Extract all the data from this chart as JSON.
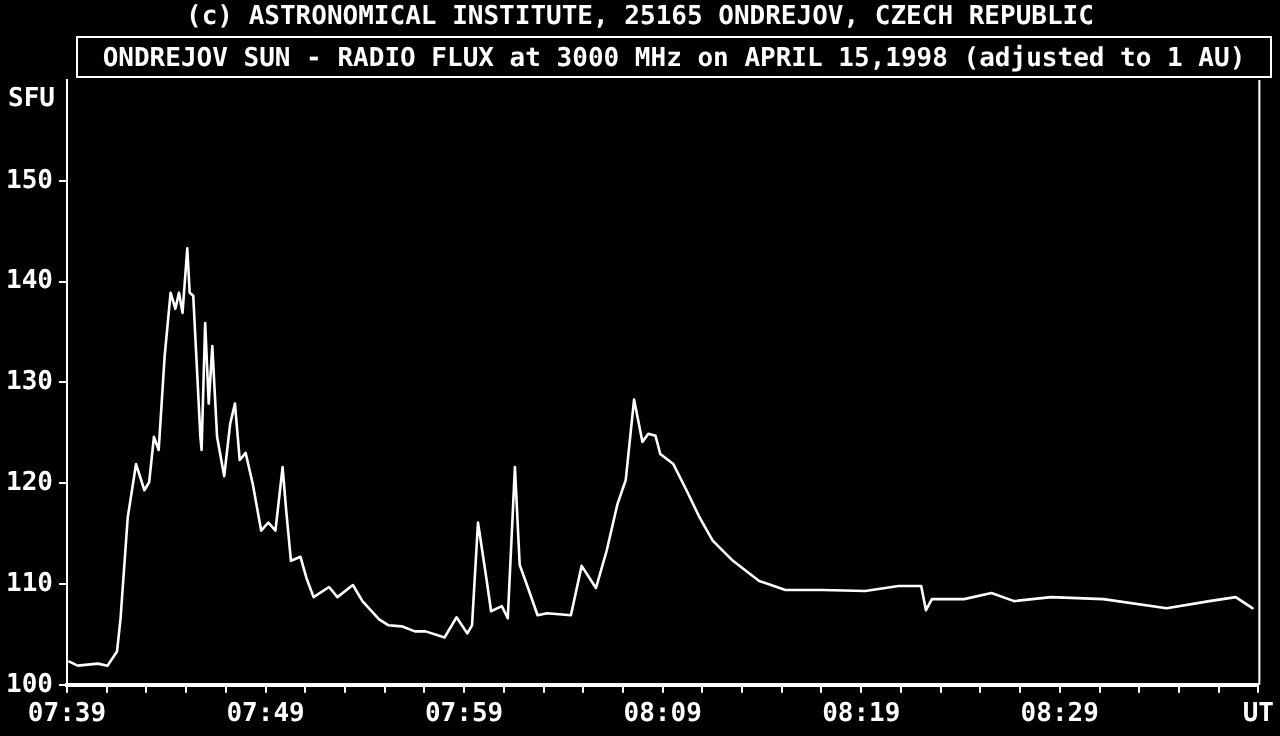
{
  "chart_data": {
    "type": "line",
    "title": "ONDREJOV SUN - RADIO FLUX at 3000 MHz on APRIL 15,1998 (adjusted to 1 AU)",
    "subtitle": "(c) ASTRONOMICAL INSTITUTE, 25165 ONDREJOV, CZECH REPUBLIC",
    "ylabel": "SFU",
    "series": [
      {
        "color": "#ffffff",
        "x": [
          7.652,
          7.659,
          7.676,
          7.684,
          7.692,
          7.695,
          7.701,
          7.708,
          7.715,
          7.719,
          7.723,
          7.727,
          7.732,
          7.737,
          7.741,
          7.744,
          7.747,
          7.751,
          7.753,
          7.756,
          7.762,
          7.763,
          7.766,
          7.769,
          7.772,
          7.776,
          7.782,
          7.787,
          7.791,
          7.795,
          7.8,
          7.806,
          7.813,
          7.819,
          7.825,
          7.831,
          7.834,
          7.838,
          7.846,
          7.851,
          7.857,
          7.87,
          7.877,
          7.89,
          7.898,
          7.912,
          7.92,
          7.931,
          7.942,
          7.951,
          7.967,
          7.977,
          7.986,
          7.99,
          7.995,
          8.002,
          8.006,
          8.015,
          8.02,
          8.026,
          8.03,
          8.037,
          8.045,
          8.053,
          8.073,
          8.082,
          8.094,
          8.103,
          8.112,
          8.119,
          8.126,
          8.133,
          8.138,
          8.144,
          8.148,
          8.159,
          8.17,
          8.181,
          8.192,
          8.209,
          8.231,
          8.253,
          8.284,
          8.32,
          8.348,
          8.367,
          8.371,
          8.376,
          8.403,
          8.426,
          8.445,
          8.476,
          8.52,
          8.573,
          8.609,
          8.631,
          8.645
        ],
        "values": [
          102.3,
          101.9,
          102.1,
          101.9,
          103.3,
          106.6,
          116.6,
          121.9,
          119.3,
          120.1,
          124.6,
          123.3,
          132.6,
          138.9,
          137.3,
          138.9,
          136.9,
          143.3,
          138.9,
          138.6,
          124.6,
          123.3,
          135.9,
          127.9,
          133.6,
          124.6,
          120.7,
          125.9,
          127.9,
          122.3,
          123.0,
          119.9,
          115.3,
          116.1,
          115.3,
          121.6,
          117.3,
          112.3,
          112.7,
          110.6,
          108.7,
          109.7,
          108.7,
          109.9,
          108.3,
          106.5,
          105.9,
          105.8,
          105.3,
          105.3,
          104.7,
          106.7,
          105.1,
          105.9,
          116.1,
          110.6,
          107.3,
          107.8,
          106.6,
          121.6,
          111.9,
          109.6,
          106.9,
          107.1,
          106.9,
          111.8,
          109.6,
          113.3,
          117.9,
          120.3,
          128.3,
          124.1,
          124.9,
          124.7,
          122.9,
          121.9,
          119.3,
          116.6,
          114.3,
          112.3,
          110.3,
          109.4,
          109.4,
          109.3,
          109.8,
          109.8,
          107.4,
          108.5,
          108.5,
          109.1,
          108.3,
          108.7,
          108.5,
          107.6,
          108.3,
          108.7,
          107.6
        ]
      }
    ],
    "xlim": [
      7.65,
      8.65
    ],
    "xticks": [
      {
        "value": 7.65,
        "label": "07:39"
      },
      {
        "value": 7.6833,
        "label": null
      },
      {
        "value": 7.7167,
        "label": null
      },
      {
        "value": 7.75,
        "label": null
      },
      {
        "value": 7.7833,
        "label": null
      },
      {
        "value": 7.8167,
        "label": "07:49"
      },
      {
        "value": 7.85,
        "label": null
      },
      {
        "value": 7.8833,
        "label": null
      },
      {
        "value": 7.9167,
        "label": null
      },
      {
        "value": 7.95,
        "label": null
      },
      {
        "value": 7.9833,
        "label": "07:59"
      },
      {
        "value": 8.0167,
        "label": null
      },
      {
        "value": 8.05,
        "label": null
      },
      {
        "value": 8.0833,
        "label": null
      },
      {
        "value": 8.1167,
        "label": null
      },
      {
        "value": 8.15,
        "label": "08:09"
      },
      {
        "value": 8.1833,
        "label": null
      },
      {
        "value": 8.2167,
        "label": null
      },
      {
        "value": 8.25,
        "label": null
      },
      {
        "value": 8.2833,
        "label": null
      },
      {
        "value": 8.3167,
        "label": "08:19"
      },
      {
        "value": 8.35,
        "label": null
      },
      {
        "value": 8.3833,
        "label": null
      },
      {
        "value": 8.4167,
        "label": null
      },
      {
        "value": 8.45,
        "label": null
      },
      {
        "value": 8.4833,
        "label": "08:29"
      },
      {
        "value": 8.5167,
        "label": null
      },
      {
        "value": 8.55,
        "label": null
      },
      {
        "value": 8.5833,
        "label": null
      },
      {
        "value": 8.6167,
        "label": null
      },
      {
        "value": 8.65,
        "label": "UT"
      }
    ],
    "ylim": [
      100,
      160
    ],
    "yticks": [
      100,
      110,
      120,
      130,
      140,
      150
    ],
    "grid": false,
    "legend": false,
    "marker": "none",
    "line_style": "solid"
  }
}
